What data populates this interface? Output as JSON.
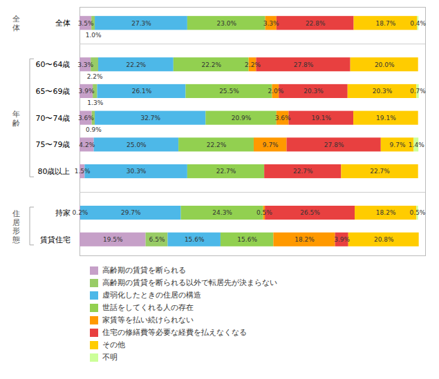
{
  "chart_data": {
    "type": "bar",
    "orientation": "horizontal",
    "stacked": true,
    "data_labels": true,
    "tick_labels": "y",
    "grid": false,
    "legend": "bottom",
    "categories": [
      "全体",
      "60〜64歳",
      "65〜69歳",
      "70〜74歳",
      "75〜79歳",
      "80歳以上",
      "持家",
      "賃貸住宅"
    ],
    "xlim": [
      0,
      102
    ],
    "series": [
      {
        "name": "高齢期の賃貸を断られる",
        "color": "#c6a0c8",
        "values": [
          3.5,
          3.3,
          3.9,
          3.6,
          4.2,
          1.5,
          0.2,
          19.5
        ],
        "value_labels": [
          "3.5%",
          "3.3%",
          "3.9%",
          "3.6%",
          "4.2%",
          "1.5%",
          "0.2%",
          "19.5%"
        ]
      },
      {
        "name": "高齢期の賃貸を断られる以外で転居先が決まらない",
        "color": "#99cc66",
        "values": [
          1.0,
          2.2,
          1.3,
          0.9,
          0.0,
          0.0,
          0.0,
          6.5
        ],
        "value_labels": [
          "1.0%",
          "2.2%",
          "1.3%",
          "0.9%",
          null,
          null,
          null,
          "6.5%"
        ]
      },
      {
        "name": "虚弱化したときの住居の構造",
        "color": "#4db8e8",
        "values": [
          27.3,
          22.2,
          26.1,
          32.7,
          25.0,
          30.3,
          29.7,
          15.6
        ],
        "value_labels": [
          "27.3%",
          "22.2%",
          "26.1%",
          "32.7%",
          "25.0%",
          "30.3%",
          "29.7%",
          "15.6%"
        ]
      },
      {
        "name": "世話をしてくれる人の存在",
        "color": "#92d050",
        "values": [
          23.0,
          22.2,
          25.5,
          20.9,
          22.2,
          22.7,
          24.3,
          15.6
        ],
        "value_labels": [
          "23.0%",
          "22.2%",
          "25.5%",
          "20.9%",
          "22.2%",
          "22.7%",
          "24.3%",
          "15.6%"
        ]
      },
      {
        "name": "家賃等を払い続けられない",
        "color": "#ff9900",
        "values": [
          3.3,
          2.2,
          2.0,
          3.6,
          9.7,
          0.0,
          0.5,
          18.2
        ],
        "value_labels": [
          "3.3%",
          "2.2%",
          "2.0%",
          "3.6%",
          "9.7%",
          null,
          "0.5%",
          "18.2%"
        ]
      },
      {
        "name": "住宅の修繕費等必要な経費を払えなくなる",
        "color": "#e84040",
        "values": [
          22.8,
          27.8,
          20.3,
          19.1,
          27.8,
          22.7,
          26.5,
          3.9
        ],
        "value_labels": [
          "22.8%",
          "27.8%",
          "20.3%",
          "19.1%",
          "27.8%",
          "22.7%",
          "26.5%",
          "3.9%"
        ]
      },
      {
        "name": "その他",
        "color": "#ffcc00",
        "values": [
          18.7,
          20.0,
          20.3,
          19.1,
          9.7,
          22.7,
          18.2,
          20.8
        ],
        "value_labels": [
          "18.7%",
          "20.0%",
          "20.3%",
          "19.1%",
          "9.7%",
          "22.7%",
          "18.2%",
          "20.8%"
        ]
      },
      {
        "name": "不明",
        "color": "#ccff99",
        "values": [
          0.4,
          0.0,
          0.7,
          0.0,
          1.4,
          0.0,
          0.5,
          0.0
        ],
        "value_labels": [
          "0.4%",
          null,
          "0.7%",
          null,
          "1.4%",
          null,
          "0.5%",
          null
        ]
      }
    ],
    "groups": [
      {
        "label": "全\n体",
        "categories": [
          "全体"
        ]
      },
      {
        "label": "年\n齢",
        "categories": [
          "60〜64歳",
          "65〜69歳",
          "70〜74歳",
          "75〜79歳",
          "80歳以上"
        ]
      },
      {
        "label": "住\n居\n形\n態",
        "categories": [
          "持家",
          "賃貸住宅"
        ]
      }
    ]
  }
}
